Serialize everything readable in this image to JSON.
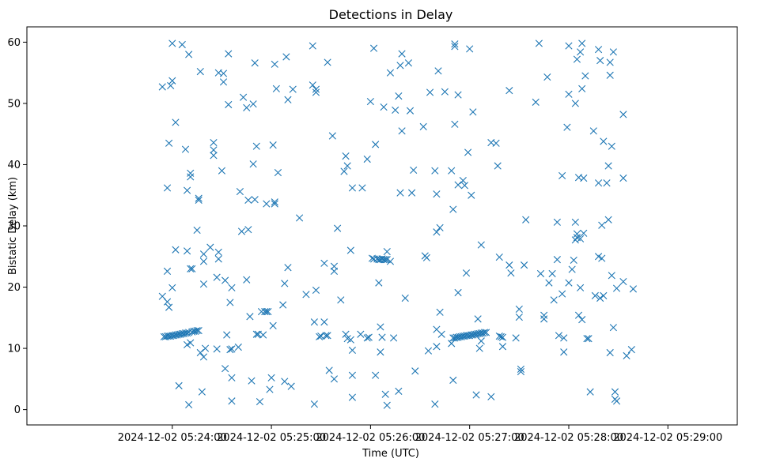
{
  "chart_data": {
    "type": "scatter",
    "title": "Detections in Delay",
    "xlabel": "Time (UTC)",
    "ylabel": "Bistatic Delay (km)",
    "marker": "x",
    "color": "#1f77b4",
    "xlim_seconds": [
      -88,
      342
    ],
    "x_origin": "2024-12-02 05:24:00",
    "ylim": [
      -2.5,
      62.5
    ],
    "xticks": [
      {
        "value": 0,
        "label": "2024-12-02 05:24:00"
      },
      {
        "value": 60,
        "label": "2024-12-02 05:25:00"
      },
      {
        "value": 120,
        "label": "2024-12-02 05:26:00"
      },
      {
        "value": 180,
        "label": "2024-12-02 05:27:00"
      },
      {
        "value": 240,
        "label": "2024-12-02 05:28:00"
      },
      {
        "value": 300,
        "label": "2024-12-02 05:29:00"
      }
    ],
    "yticks": [
      0,
      10,
      20,
      30,
      40,
      50,
      60
    ],
    "points": [
      [
        -5,
        11.9
      ],
      [
        -4,
        11.9
      ],
      [
        -3,
        12.0
      ],
      [
        -2,
        12.0
      ],
      [
        -1,
        12.0
      ],
      [
        0,
        12.1
      ],
      [
        1,
        12.1
      ],
      [
        2,
        12.2
      ],
      [
        3,
        12.2
      ],
      [
        4,
        12.3
      ],
      [
        5,
        12.3
      ],
      [
        6,
        12.4
      ],
      [
        7,
        12.4
      ],
      [
        8,
        12.5
      ],
      [
        9,
        12.5
      ],
      [
        10,
        12.6
      ],
      [
        12,
        12.7
      ],
      [
        13,
        12.8
      ],
      [
        14,
        12.8
      ],
      [
        15,
        12.9
      ],
      [
        16,
        12.9
      ],
      [
        89,
        11.9
      ],
      [
        90,
        12.0
      ],
      [
        93,
        12.1
      ],
      [
        94,
        12.1
      ],
      [
        121,
        24.7
      ],
      [
        122,
        24.6
      ],
      [
        124,
        24.6
      ],
      [
        125,
        24.5
      ],
      [
        126,
        24.5
      ],
      [
        127,
        24.6
      ],
      [
        128,
        24.5
      ],
      [
        129,
        24.5
      ],
      [
        130,
        24.5
      ],
      [
        -6,
        52.7
      ],
      [
        -1,
        52.9
      ],
      [
        0,
        53.7
      ],
      [
        -2,
        43.5
      ],
      [
        -3,
        36.2
      ],
      [
        -3,
        22.6
      ],
      [
        -6,
        18.5
      ],
      [
        -3,
        17.6
      ],
      [
        -2,
        16.7
      ],
      [
        0,
        19.9
      ],
      [
        2,
        26.1
      ],
      [
        2,
        46.9
      ],
      [
        4,
        3.9
      ],
      [
        0,
        59.8
      ],
      [
        6,
        59.6
      ],
      [
        8,
        42.5
      ],
      [
        9,
        35.8
      ],
      [
        9,
        25.9
      ],
      [
        9,
        10.6
      ],
      [
        10,
        0.8
      ],
      [
        10,
        58.0
      ],
      [
        11,
        38.6
      ],
      [
        11,
        38.0
      ],
      [
        11,
        23.0
      ],
      [
        12,
        23.0
      ],
      [
        11,
        10.9
      ],
      [
        15,
        29.3
      ],
      [
        16,
        34.5
      ],
      [
        16,
        34.2
      ],
      [
        17,
        55.2
      ],
      [
        17,
        9.3
      ],
      [
        18,
        2.9
      ],
      [
        19,
        25.4
      ],
      [
        19,
        24.2
      ],
      [
        19,
        20.5
      ],
      [
        19,
        8.6
      ],
      [
        20,
        10.0
      ],
      [
        23,
        26.5
      ],
      [
        25,
        43.6
      ],
      [
        25,
        42.4
      ],
      [
        25,
        41.5
      ],
      [
        27,
        21.6
      ],
      [
        27,
        9.9
      ],
      [
        28,
        25.7
      ],
      [
        28,
        24.6
      ],
      [
        28,
        55.0
      ],
      [
        30,
        39.0
      ],
      [
        31,
        53.5
      ],
      [
        31,
        54.9
      ],
      [
        32,
        21.1
      ],
      [
        32,
        6.7
      ],
      [
        33,
        12.2
      ],
      [
        34,
        49.8
      ],
      [
        34,
        58.1
      ],
      [
        35,
        17.5
      ],
      [
        35,
        9.8
      ],
      [
        36,
        9.9
      ],
      [
        36,
        5.2
      ],
      [
        36,
        1.4
      ],
      [
        36,
        19.9
      ],
      [
        40,
        10.2
      ],
      [
        41,
        35.6
      ],
      [
        42,
        29.1
      ],
      [
        43,
        51.0
      ],
      [
        45,
        49.3
      ],
      [
        45,
        21.2
      ],
      [
        46,
        29.4
      ],
      [
        46,
        34.2
      ],
      [
        47,
        15.2
      ],
      [
        48,
        4.7
      ],
      [
        49,
        40.1
      ],
      [
        49,
        49.9
      ],
      [
        50,
        34.3
      ],
      [
        50,
        56.6
      ],
      [
        51,
        43.0
      ],
      [
        51,
        12.3
      ],
      [
        52,
        12.3
      ],
      [
        53,
        1.3
      ],
      [
        54,
        16.0
      ],
      [
        55,
        12.2
      ],
      [
        56,
        16.0
      ],
      [
        57,
        33.6
      ],
      [
        57,
        16.0
      ],
      [
        58,
        16.0
      ],
      [
        59,
        3.3
      ],
      [
        60,
        5.2
      ],
      [
        61,
        13.7
      ],
      [
        61,
        43.2
      ],
      [
        62,
        56.4
      ],
      [
        62,
        33.9
      ],
      [
        62,
        33.6
      ],
      [
        63,
        52.4
      ],
      [
        64,
        38.7
      ],
      [
        67,
        17.1
      ],
      [
        68,
        20.6
      ],
      [
        68,
        4.6
      ],
      [
        69,
        57.6
      ],
      [
        70,
        50.6
      ],
      [
        70,
        23.2
      ],
      [
        72,
        3.8
      ],
      [
        73,
        52.3
      ],
      [
        77,
        31.3
      ],
      [
        81,
        18.8
      ],
      [
        85,
        59.4
      ],
      [
        85,
        53.0
      ],
      [
        86,
        14.3
      ],
      [
        86,
        0.9
      ],
      [
        87,
        51.8
      ],
      [
        87,
        52.3
      ],
      [
        87,
        19.5
      ],
      [
        92,
        23.9
      ],
      [
        92,
        14.3
      ],
      [
        94,
        56.7
      ],
      [
        95,
        6.4
      ],
      [
        97,
        44.7
      ],
      [
        98,
        23.4
      ],
      [
        98,
        22.6
      ],
      [
        98,
        5.0
      ],
      [
        100,
        29.6
      ],
      [
        102,
        17.9
      ],
      [
        104,
        38.9
      ],
      [
        105,
        41.4
      ],
      [
        105,
        12.3
      ],
      [
        106,
        11.6
      ],
      [
        106,
        39.8
      ],
      [
        108,
        11.4
      ],
      [
        108,
        26.0
      ],
      [
        109,
        36.2
      ],
      [
        109,
        9.7
      ],
      [
        109,
        5.6
      ],
      [
        109,
        2.0
      ],
      [
        114,
        12.3
      ],
      [
        115,
        36.2
      ],
      [
        118,
        40.9
      ],
      [
        118,
        11.7
      ],
      [
        119,
        11.8
      ],
      [
        120,
        50.3
      ],
      [
        122,
        59.0
      ],
      [
        123,
        43.3
      ],
      [
        123,
        5.6
      ],
      [
        125,
        20.7
      ],
      [
        126,
        9.4
      ],
      [
        126,
        13.5
      ],
      [
        127,
        11.8
      ],
      [
        128,
        49.4
      ],
      [
        129,
        2.5
      ],
      [
        130,
        25.8
      ],
      [
        130,
        0.7
      ],
      [
        132,
        24.2
      ],
      [
        132,
        55.0
      ],
      [
        134,
        11.7
      ],
      [
        135,
        48.9
      ],
      [
        137,
        3.0
      ],
      [
        137,
        51.2
      ],
      [
        138,
        56.2
      ],
      [
        138,
        35.4
      ],
      [
        139,
        58.1
      ],
      [
        139,
        45.5
      ],
      [
        141,
        18.2
      ],
      [
        143,
        56.6
      ],
      [
        144,
        48.8
      ],
      [
        145,
        35.4
      ],
      [
        146,
        39.1
      ],
      [
        147,
        6.3
      ],
      [
        152,
        46.2
      ],
      [
        153,
        25.1
      ],
      [
        154,
        24.8
      ],
      [
        155,
        9.6
      ],
      [
        156,
        51.8
      ],
      [
        159,
        0.9
      ],
      [
        159,
        39.0
      ],
      [
        160,
        13.1
      ],
      [
        160,
        10.3
      ],
      [
        160,
        29.0
      ],
      [
        160,
        35.2
      ],
      [
        161,
        55.3
      ],
      [
        162,
        29.7
      ],
      [
        162,
        15.9
      ],
      [
        163,
        12.3
      ],
      [
        165,
        51.9
      ],
      [
        169,
        10.8
      ],
      [
        169,
        39.0
      ],
      [
        170,
        32.7
      ],
      [
        170,
        4.8
      ],
      [
        171,
        46.6
      ],
      [
        171,
        59.3
      ],
      [
        171,
        59.7
      ],
      [
        173,
        51.4
      ],
      [
        173,
        36.7
      ],
      [
        173,
        19.1
      ],
      [
        176,
        37.4
      ],
      [
        177,
        36.6
      ],
      [
        178,
        22.3
      ],
      [
        179,
        42.0
      ],
      [
        180,
        58.9
      ],
      [
        181,
        35.0
      ],
      [
        182,
        48.6
      ],
      [
        184,
        2.4
      ],
      [
        185,
        14.8
      ],
      [
        186,
        10.0
      ],
      [
        187,
        26.9
      ],
      [
        187,
        11.2
      ],
      [
        193,
        43.6
      ],
      [
        193,
        2.1
      ],
      [
        196,
        43.5
      ],
      [
        197,
        39.8
      ],
      [
        198,
        24.9
      ],
      [
        198,
        12.0
      ],
      [
        199,
        11.9
      ],
      [
        200,
        11.8
      ],
      [
        200,
        10.3
      ],
      [
        204,
        52.1
      ],
      [
        204,
        23.6
      ],
      [
        205,
        22.3
      ],
      [
        208,
        11.7
      ],
      [
        210,
        16.4
      ],
      [
        210,
        15.1
      ],
      [
        211,
        6.6
      ],
      [
        211,
        6.2
      ],
      [
        213,
        23.6
      ],
      [
        214,
        31.0
      ],
      [
        220,
        50.2
      ],
      [
        222,
        59.8
      ],
      [
        223,
        22.2
      ],
      [
        225,
        15.4
      ],
      [
        225,
        14.8
      ],
      [
        227,
        54.3
      ],
      [
        228,
        20.7
      ],
      [
        230,
        22.2
      ],
      [
        231,
        17.9
      ],
      [
        233,
        30.6
      ],
      [
        233,
        24.5
      ],
      [
        234,
        12.1
      ],
      [
        236,
        38.2
      ],
      [
        236,
        18.9
      ],
      [
        237,
        9.4
      ],
      [
        237,
        11.7
      ],
      [
        239,
        46.1
      ],
      [
        240,
        20.7
      ],
      [
        240,
        51.5
      ],
      [
        240,
        59.4
      ],
      [
        242,
        22.9
      ],
      [
        243,
        24.4
      ],
      [
        244,
        30.6
      ],
      [
        244,
        27.7
      ],
      [
        244,
        50.0
      ],
      [
        245,
        28.1
      ],
      [
        245,
        28.7
      ],
      [
        245,
        57.2
      ],
      [
        246,
        15.4
      ],
      [
        246,
        37.9
      ],
      [
        247,
        58.4
      ],
      [
        247,
        27.9
      ],
      [
        247,
        19.9
      ],
      [
        248,
        52.4
      ],
      [
        248,
        59.8
      ],
      [
        248,
        14.7
      ],
      [
        249,
        37.8
      ],
      [
        249,
        28.8
      ],
      [
        250,
        54.5
      ],
      [
        251,
        11.6
      ],
      [
        252,
        11.6
      ],
      [
        253,
        2.9
      ],
      [
        255,
        45.5
      ],
      [
        256,
        18.6
      ],
      [
        258,
        58.8
      ],
      [
        258,
        37.0
      ],
      [
        258,
        25.0
      ],
      [
        259,
        18.2
      ],
      [
        259,
        57.0
      ],
      [
        260,
        24.7
      ],
      [
        260,
        30.1
      ],
      [
        261,
        43.8
      ],
      [
        261,
        18.6
      ],
      [
        263,
        37.0
      ],
      [
        264,
        39.8
      ],
      [
        264,
        31.0
      ],
      [
        265,
        56.7
      ],
      [
        265,
        54.6
      ],
      [
        265,
        9.3
      ],
      [
        266,
        43.0
      ],
      [
        266,
        21.9
      ],
      [
        267,
        58.4
      ],
      [
        267,
        13.4
      ],
      [
        268,
        2.9
      ],
      [
        268,
        1.7
      ],
      [
        269,
        1.4
      ],
      [
        269,
        19.8
      ],
      [
        273,
        48.2
      ],
      [
        273,
        37.8
      ],
      [
        273,
        20.9
      ],
      [
        275,
        8.8
      ],
      [
        278,
        9.8
      ],
      [
        279,
        19.7
      ],
      [
        170,
        11.7
      ],
      [
        171,
        11.7
      ],
      [
        172,
        11.8
      ],
      [
        173,
        11.8
      ],
      [
        174,
        11.9
      ],
      [
        175,
        11.9
      ],
      [
        176,
        12.0
      ],
      [
        177,
        12.0
      ],
      [
        178,
        12.1
      ],
      [
        179,
        12.1
      ],
      [
        180,
        12.1
      ],
      [
        181,
        12.2
      ],
      [
        182,
        12.2
      ],
      [
        183,
        12.3
      ],
      [
        184,
        12.3
      ],
      [
        185,
        12.4
      ],
      [
        186,
        12.4
      ],
      [
        187,
        12.5
      ],
      [
        188,
        12.5
      ],
      [
        189,
        12.6
      ],
      [
        190,
        12.6
      ]
    ]
  }
}
